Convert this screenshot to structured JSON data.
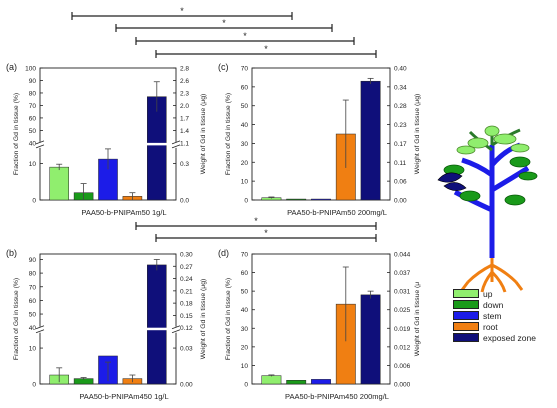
{
  "colors": {
    "up": "#90ee6e",
    "down": "#1a9a1a",
    "stem": "#1c1ce8",
    "root": "#f07f12",
    "exposed": "#0f0f7a"
  },
  "legend": [
    "up",
    "down",
    "stem",
    "root",
    "exposed zone"
  ],
  "sig_mark": "*",
  "chart_data": [
    {
      "panel": "(a)",
      "type": "bar",
      "categories": [
        "up",
        "down",
        "stem",
        "root",
        "exposed zone"
      ],
      "values": [
        9,
        2,
        11.2,
        1,
        77
      ],
      "errors": [
        0.8,
        2.5,
        2.8,
        1,
        12
      ],
      "xlabel": "PAA50-b-PNIPAm50 1g/L",
      "ylabel": "Fraction of Gd in tissue (%)",
      "y2label": "Weight of Gd in tissue (μg)",
      "y_ticks_low": [
        "0",
        "10"
      ],
      "y_ticks_high": [
        "40",
        "50",
        "60",
        "70",
        "80",
        "90",
        "100"
      ],
      "y2_ticks_low": [
        "0.0",
        "0.3"
      ],
      "y2_ticks_high": [
        "1.1",
        "1.4",
        "1.7",
        "2.0",
        "2.3",
        "2.6",
        "2.8"
      ],
      "axis_break": true
    },
    {
      "panel": "(b)",
      "type": "bar",
      "categories": [
        "up",
        "down",
        "stem",
        "root",
        "exposed zone"
      ],
      "values": [
        2.5,
        1.5,
        7.8,
        1.5,
        86
      ],
      "errors": [
        2,
        0.3,
        7,
        1,
        4
      ],
      "xlabel": "PAA50-b-PNIPAm450 1g/L",
      "ylabel": "Fraction of Gd in tissue (%)",
      "y2label": "Weight of Gd in tissue (μg)",
      "y_ticks_low": [
        "0",
        "10"
      ],
      "y_ticks_high": [
        "40",
        "50",
        "60",
        "70",
        "80",
        "90"
      ],
      "y2_ticks_low": [
        "0.00",
        "0.03"
      ],
      "y2_ticks_high": [
        "0.12",
        "0.15",
        "0.18",
        "0.21",
        "0.24",
        "0.27",
        "0.30"
      ],
      "axis_break": true
    },
    {
      "panel": "(c)",
      "type": "bar",
      "categories": [
        "up",
        "down",
        "stem",
        "root",
        "exposed zone"
      ],
      "values": [
        1.2,
        0.5,
        0.5,
        35,
        63
      ],
      "errors": [
        0.4,
        0,
        0,
        18,
        1.5
      ],
      "xlabel": "PAA50-b-PNIPAm50 200mg/L",
      "ylabel": "Fraction of Gd in tissue (%)",
      "y2label": "Weight of Gd in tissue (μg)",
      "ylim": [
        0,
        70
      ],
      "y_ticks": [
        "0",
        "10",
        "20",
        "30",
        "40",
        "50",
        "60",
        "70"
      ],
      "y2_ticks": [
        "0.00",
        "0.06",
        "0.11",
        "0.17",
        "0.23",
        "0.28",
        "0.34",
        "0.40"
      ]
    },
    {
      "panel": "(d)",
      "type": "bar",
      "categories": [
        "up",
        "down",
        "stem",
        "root",
        "exposed zone"
      ],
      "values": [
        4.5,
        2,
        2.5,
        43,
        48
      ],
      "errors": [
        0.4,
        0,
        0,
        20,
        2
      ],
      "xlabel": "PAA50-b-PNIPAm450 200mg/L",
      "ylabel": "Fraction of Gd in tissue (%)",
      "y2label": "Weight of Gd in tissue (μ",
      "ylim": [
        0,
        70
      ],
      "y_ticks": [
        "0",
        "10",
        "20",
        "30",
        "40",
        "50",
        "60",
        "70"
      ],
      "y2_ticks": [
        "0.000",
        "0.006",
        "0.012",
        "0.019",
        "0.025",
        "0.031",
        "0.037",
        "0.044"
      ]
    }
  ]
}
